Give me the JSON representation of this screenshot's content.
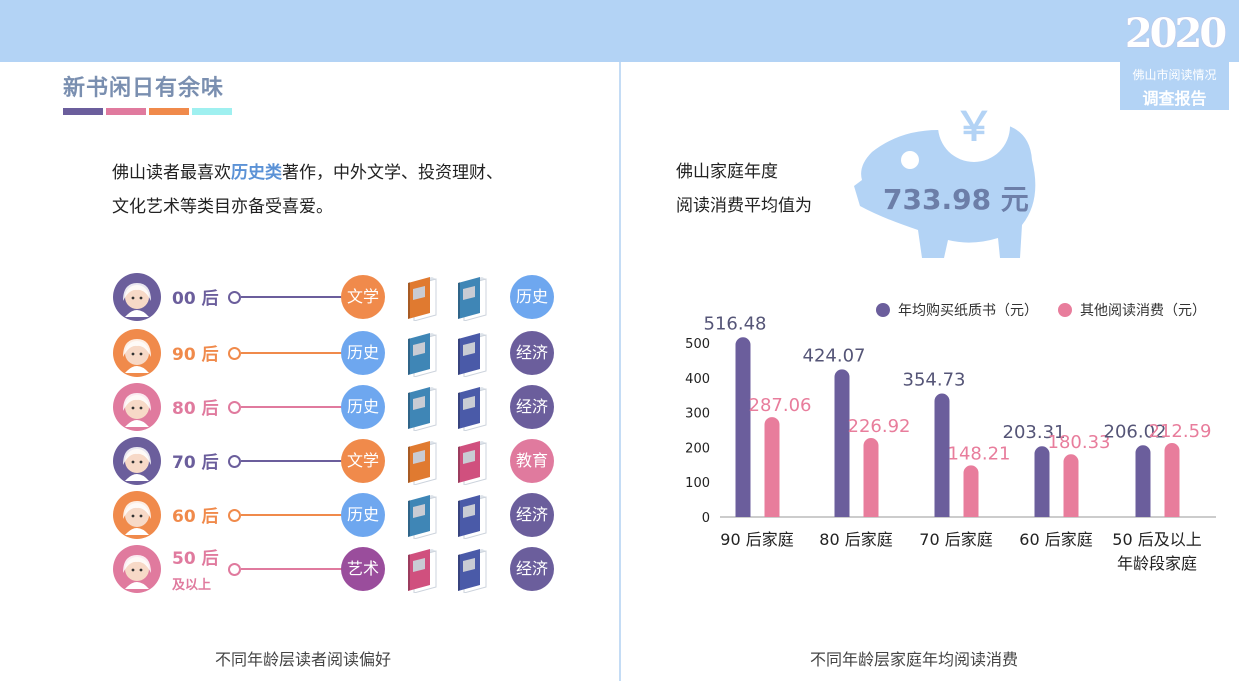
{
  "badge": {
    "year": "2020",
    "line1": "佛山市阅读情况",
    "line2": "调查报告"
  },
  "left": {
    "title": "新书闲日有余味",
    "title_bar_colors": [
      "#6b5e9c",
      "#e07a9e",
      "#f08a4b",
      "#9ff0f0"
    ],
    "intro_pre": "佛山读者最喜欢",
    "intro_highlight": "历史类",
    "intro_post": "著作，中外文学、投资理财、",
    "intro_line2": "文化艺术等类目亦备受喜爱。",
    "caption": "不同年龄层读者阅读偏好",
    "rows": [
      {
        "age": "00 后",
        "age_sub": "",
        "color": "#6b5e9c",
        "cat1": "文学",
        "cat1_color": "#f08a4b",
        "cat2": "历史",
        "cat2_color": "#6ea7ef",
        "book1": "#e07a30",
        "book2": "#3f86b6",
        "avatar_icon": "girl-avatar-icon"
      },
      {
        "age": "90 后",
        "age_sub": "",
        "color": "#f08a4b",
        "cat1": "历史",
        "cat1_color": "#6ea7ef",
        "cat2": "经济",
        "cat2_color": "#6b5e9c",
        "book1": "#3f86b6",
        "book2": "#4a5aa8",
        "avatar_icon": "glasses-avatar-icon"
      },
      {
        "age": "80 后",
        "age_sub": "",
        "color": "#e07a9e",
        "cat1": "历史",
        "cat1_color": "#6ea7ef",
        "cat2": "经济",
        "cat2_color": "#6b5e9c",
        "book1": "#3f86b6",
        "book2": "#4a5aa8",
        "avatar_icon": "woman-avatar-icon"
      },
      {
        "age": "70 后",
        "age_sub": "",
        "color": "#6b5e9c",
        "cat1": "文学",
        "cat1_color": "#f08a4b",
        "cat2": "教育",
        "cat2_color": "#e07a9e",
        "book1": "#e07a30",
        "book2": "#d0507e",
        "avatar_icon": "curly-avatar-icon"
      },
      {
        "age": "60 后",
        "age_sub": "",
        "color": "#f08a4b",
        "cat1": "历史",
        "cat1_color": "#6ea7ef",
        "cat2": "经济",
        "cat2_color": "#6b5e9c",
        "book1": "#3f86b6",
        "book2": "#4a5aa8",
        "avatar_icon": "man-avatar-icon"
      },
      {
        "age": "50 后",
        "age_sub": "及以上",
        "color": "#e07a9e",
        "cat1": "艺术",
        "cat1_color": "#9a4d9c",
        "cat2": "经济",
        "cat2_color": "#6b5e9c",
        "book1": "#d0507e",
        "book2": "#4a5aa8",
        "avatar_icon": "elder-avatar-icon"
      }
    ]
  },
  "right": {
    "text_line1": "佛山家庭年度",
    "text_line2": "阅读消费平均值为",
    "piggy_value": "733.98 元",
    "piggy_symbol": "￥",
    "caption": "不同年龄层家庭年均阅读消费"
  },
  "chart_data": {
    "type": "bar",
    "categories": [
      "90 后家庭",
      "80 后家庭",
      "70 后家庭",
      "60 后家庭",
      "50 后及以上|年龄段家庭"
    ],
    "series": [
      {
        "name": "年均购买纸质书（元）",
        "color": "#6b5e9c",
        "values": [
          516.48,
          424.07,
          354.73,
          203.31,
          206.02
        ]
      },
      {
        "name": "其他阅读消费（元）",
        "color": "#e87d9c",
        "values": [
          287.06,
          226.92,
          148.21,
          180.33,
          212.59
        ]
      }
    ],
    "value_labels": [
      [
        "516.48",
        "424.07",
        "354.73",
        "203.31",
        "206.02"
      ],
      [
        "287.06",
        "226.92",
        "148.21",
        "180.33",
        "212.59"
      ]
    ],
    "yticks": [
      0,
      100,
      200,
      300,
      400,
      500
    ],
    "ylim": [
      0,
      500
    ],
    "legend_position": "top-right",
    "grid": false
  }
}
